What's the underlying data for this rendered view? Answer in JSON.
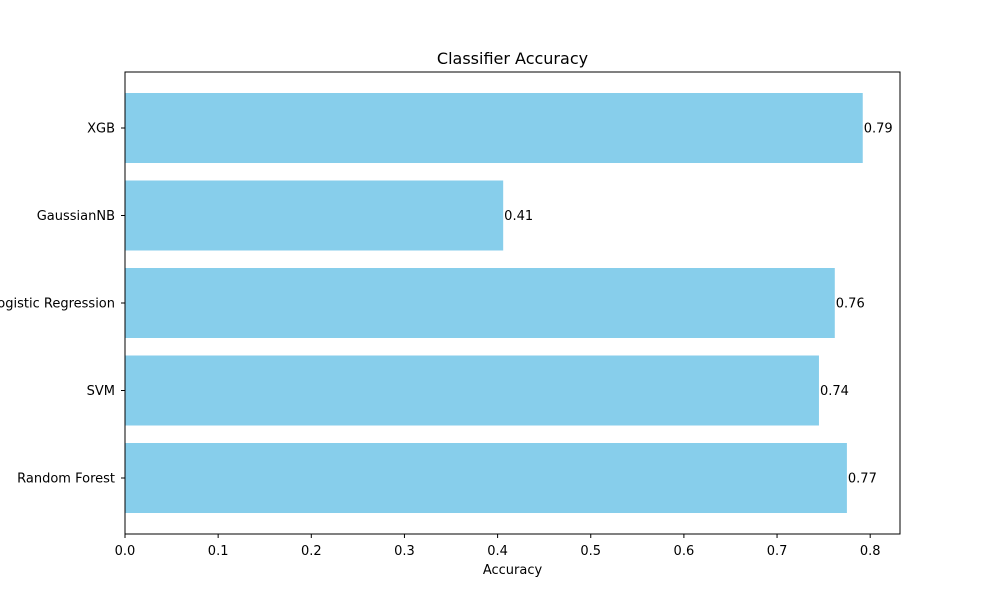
{
  "chart_data": {
    "type": "bar",
    "orientation": "horizontal",
    "title": "Classifier Accuracy",
    "xlabel": "Accuracy",
    "ylabel": "",
    "categories": [
      "Random Forest",
      "SVM",
      "Logistic Regression",
      "GaussianNB",
      "XGB"
    ],
    "values": [
      0.775,
      0.745,
      0.762,
      0.406,
      0.792
    ],
    "value_labels": [
      "0.77",
      "0.74",
      "0.76",
      "0.41",
      "0.79"
    ],
    "xlim": [
      0,
      0.832
    ],
    "xticks": [
      0.0,
      0.1,
      0.2,
      0.3,
      0.4,
      0.5,
      0.6,
      0.7,
      0.8
    ],
    "xtick_labels": [
      "0.0",
      "0.1",
      "0.2",
      "0.3",
      "0.4",
      "0.5",
      "0.6",
      "0.7",
      "0.8"
    ],
    "bar_color": "#87CEEB",
    "grid": false,
    "legend": "none"
  }
}
